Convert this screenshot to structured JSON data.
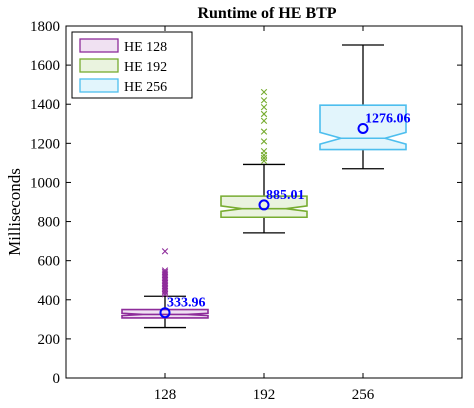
{
  "chart_data": {
    "type": "box",
    "title": "Runtime of HE BTP",
    "xlabel": "",
    "ylabel": "Milliseconds",
    "categories": [
      "128",
      "192",
      "256"
    ],
    "ylim": [
      0,
      1800
    ],
    "yticks": [
      0,
      200,
      400,
      600,
      800,
      1000,
      1200,
      1400,
      1600,
      1800
    ],
    "legend_position": "top-left",
    "series": [
      {
        "name": "HE 128",
        "color": "#8E2C9A",
        "fill": "#F0E1F2",
        "whisker_low": 258,
        "q1": 307,
        "median": 325,
        "q3": 350,
        "whisker_high": 418,
        "notch_low": 319,
        "notch_high": 331,
        "mean": 333.96,
        "mean_label": "333.96",
        "outliers": [
          428,
          438,
          446,
          455,
          462,
          470,
          478,
          486,
          494,
          502,
          510,
          518,
          526,
          534,
          542,
          550,
          648
        ]
      },
      {
        "name": "HE 192",
        "color": "#77AC30",
        "fill": "#EAF3DF",
        "whisker_low": 742,
        "q1": 822,
        "median": 866,
        "q3": 930,
        "whisker_high": 1092,
        "notch_low": 852,
        "notch_high": 880,
        "mean": 885.01,
        "mean_label": "885.01",
        "outliers": [
          1110,
          1125,
          1140,
          1160,
          1210,
          1260,
          1315,
          1350,
          1385,
          1420,
          1462
        ]
      },
      {
        "name": "HE 256",
        "color": "#4DBEEE",
        "fill": "#E2F5FC",
        "whisker_low": 1070,
        "q1": 1168,
        "median": 1226,
        "q3": 1395,
        "whisker_high": 1703,
        "notch_low": 1196,
        "notch_high": 1256,
        "mean": 1276.06,
        "mean_label": "1276.06",
        "outliers": []
      }
    ],
    "mean_marker_color": "#0000FF",
    "mean_label_color": "#0000FF"
  }
}
